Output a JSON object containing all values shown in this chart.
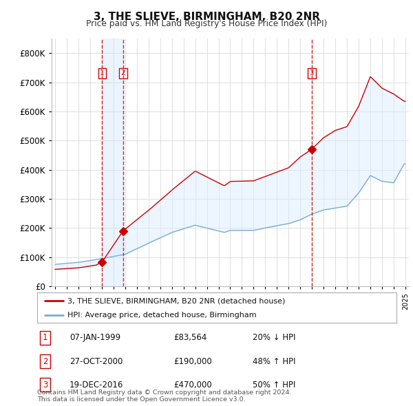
{
  "title": "3, THE SLIEVE, BIRMINGHAM, B20 2NR",
  "subtitle": "Price paid vs. HM Land Registry's House Price Index (HPI)",
  "legend_line1": "3, THE SLIEVE, BIRMINGHAM, B20 2NR (detached house)",
  "legend_line2": "HPI: Average price, detached house, Birmingham",
  "footer_line1": "Contains HM Land Registry data © Crown copyright and database right 2024.",
  "footer_line2": "This data is licensed under the Open Government Licence v3.0.",
  "transactions": [
    {
      "num": 1,
      "date": "07-JAN-1999",
      "price": "£83,564",
      "hpi_text": "20% ↓ HPI",
      "year": 1999.03
    },
    {
      "num": 2,
      "date": "27-OCT-2000",
      "price": "£190,000",
      "hpi_text": "48% ↑ HPI",
      "year": 2000.83
    },
    {
      "num": 3,
      "date": "19-DEC-2016",
      "price": "£470,000",
      "hpi_text": "50% ↑ HPI",
      "year": 2016.97
    }
  ],
  "transaction_prices": [
    83564,
    190000,
    470000
  ],
  "hpi_color": "#7aadd4",
  "price_color": "#cc0000",
  "dashed_color": "#cc0000",
  "fill_color": "#ddeeff",
  "dot_color": "#cc0000",
  "ylim": [
    0,
    850000
  ],
  "yticks": [
    0,
    100000,
    200000,
    300000,
    400000,
    500000,
    600000,
    700000,
    800000
  ],
  "xlim_start": 1994.7,
  "xlim_end": 2025.3,
  "background_color": "#ffffff",
  "grid_color": "#dddddd"
}
